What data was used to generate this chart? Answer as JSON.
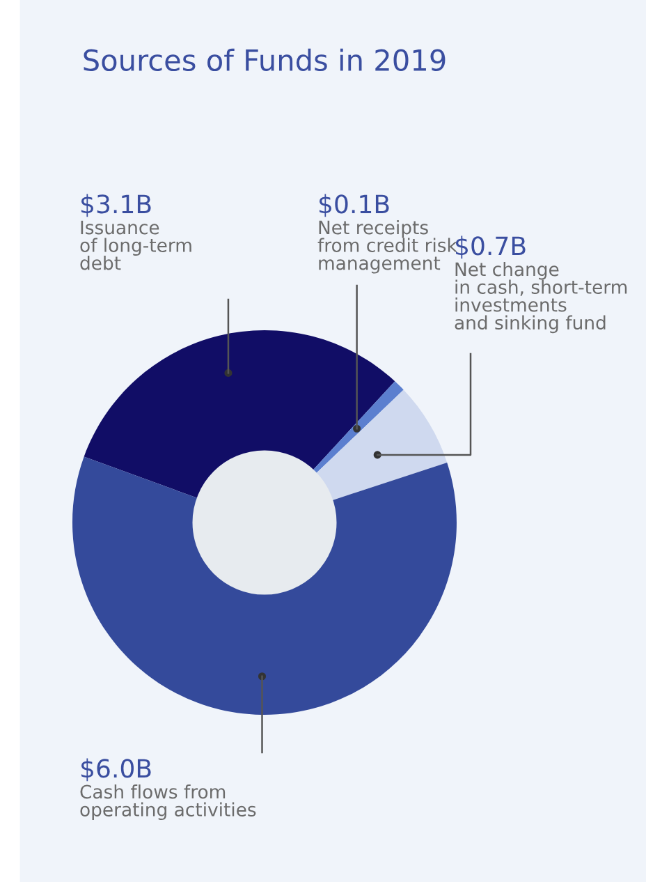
{
  "chart_data": {
    "type": "donut",
    "title": "Sources of Funds in 2019",
    "categories": [
      "Issuance\nof long-term\ndebt",
      "Net receipts\nfrom credit risk\nmanagement",
      "Net change\nin cash, short-term\ninvestments\nand sinking fund",
      "Cash flows from\noperating activities"
    ],
    "values": [
      3.1,
      0.1,
      0.7,
      6.0
    ],
    "colors": [
      "#110d66",
      "#5b7fcf",
      "#cfd9ef",
      "#344a9b"
    ],
    "value_labels": [
      "$3.1B",
      "$0.1B",
      "$0.7B",
      "$6.0B"
    ]
  }
}
